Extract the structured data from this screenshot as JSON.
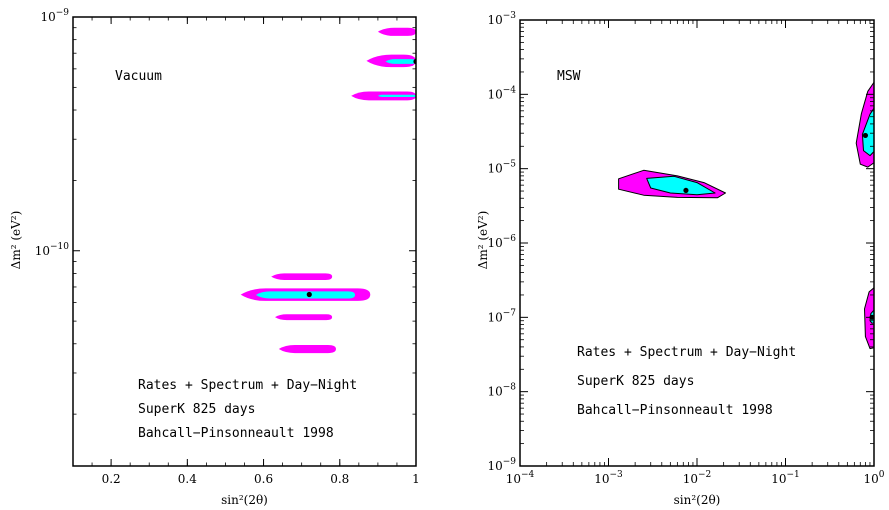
{
  "colors": {
    "outer_region": "#ff00ff",
    "inner_region": "#00ffff",
    "outline": "#000000",
    "best_fit": "#000000"
  },
  "chart_data": [
    {
      "type": "scatter",
      "panel": "left",
      "annotation": "Vacuum",
      "xlabel": "sin²(2θ)",
      "ylabel": "Δm²  (eV²)",
      "xscale": "linear",
      "yscale": "log",
      "xlim": [
        0.1,
        1.0
      ],
      "ylim": [
        1.2e-11,
        1e-09
      ],
      "xticks": [
        {
          "value": 0.2,
          "label": "0.2"
        },
        {
          "value": 0.4,
          "label": "0.4"
        },
        {
          "value": 0.6,
          "label": "0.6"
        },
        {
          "value": 0.8,
          "label": "0.8"
        },
        {
          "value": 1.0,
          "label": "1"
        }
      ],
      "yticks": [
        {
          "value": 1e-09,
          "base": "10",
          "exp": "−9"
        },
        {
          "value": 1e-10,
          "base": "10",
          "exp": "−10"
        }
      ],
      "legend_text": [
        "Rates + Spectrum + Day−Night",
        "SuperK 825 days",
        "Bahcall−Pinsonneault 1998"
      ],
      "best_fit": [
        {
          "x": 0.72,
          "y": 6.5e-11
        },
        {
          "x": 1.0,
          "y": 6.45e-10
        }
      ],
      "regions": [
        {
          "level": "outer",
          "x": [
            0.9,
            1.0
          ],
          "y": [
            8.3e-10,
            9e-10
          ]
        },
        {
          "level": "outer",
          "x": [
            0.87,
            1.0
          ],
          "y": [
            6.1e-10,
            6.9e-10
          ]
        },
        {
          "level": "inner",
          "x": [
            0.92,
            1.0
          ],
          "y": [
            6.3e-10,
            6.6e-10
          ]
        },
        {
          "level": "outer",
          "x": [
            0.83,
            1.0
          ],
          "y": [
            4.4e-10,
            4.8e-10
          ]
        },
        {
          "level": "inner",
          "x": [
            0.9,
            1.0
          ],
          "y": [
            4.55e-10,
            4.65e-10
          ]
        },
        {
          "level": "outer",
          "x": [
            0.62,
            0.78
          ],
          "y": [
            7.5e-11,
            8e-11
          ]
        },
        {
          "level": "outer",
          "x": [
            0.54,
            0.88
          ],
          "y": [
            6.1e-11,
            6.9e-11
          ]
        },
        {
          "level": "inner",
          "x": [
            0.58,
            0.84
          ],
          "y": [
            6.25e-11,
            6.7e-11
          ]
        },
        {
          "level": "outer",
          "x": [
            0.63,
            0.78
          ],
          "y": [
            5.05e-11,
            5.35e-11
          ]
        },
        {
          "level": "outer",
          "x": [
            0.64,
            0.79
          ],
          "y": [
            3.65e-11,
            3.95e-11
          ]
        }
      ]
    },
    {
      "type": "scatter",
      "panel": "right",
      "annotation": "MSW",
      "xlabel": "sin²(2θ)",
      "ylabel": "Δm²  (eV²)",
      "xscale": "log",
      "yscale": "log",
      "xlim": [
        0.0001,
        1
      ],
      "ylim": [
        1e-09,
        0.001
      ],
      "xticks": [
        {
          "value": 0.0001,
          "base": "10",
          "exp": "−4"
        },
        {
          "value": 0.001,
          "base": "10",
          "exp": "−3"
        },
        {
          "value": 0.01,
          "base": "10",
          "exp": "−2"
        },
        {
          "value": 0.1,
          "base": "10",
          "exp": "−1"
        },
        {
          "value": 1,
          "base": "10",
          "exp": "0"
        }
      ],
      "yticks": [
        {
          "value": 1e-09,
          "base": "10",
          "exp": "−9"
        },
        {
          "value": 1e-08,
          "base": "10",
          "exp": "−8"
        },
        {
          "value": 1e-07,
          "base": "10",
          "exp": "−7"
        },
        {
          "value": 1e-06,
          "base": "10",
          "exp": "−6"
        },
        {
          "value": 1e-05,
          "base": "10",
          "exp": "−5"
        },
        {
          "value": 0.0001,
          "base": "10",
          "exp": "−4"
        },
        {
          "value": 0.001,
          "base": "10",
          "exp": "−3"
        }
      ],
      "legend_text": [
        "Rates + Spectrum + Day−Night",
        "SuperK 825 days",
        "Bahcall−Pinsonneault 1998"
      ],
      "best_fit": [
        {
          "x": 0.0075,
          "y": 5.1e-06
        },
        {
          "x": 0.8,
          "y": 2.8e-05
        },
        {
          "x": 0.95,
          "y": 1e-07
        }
      ],
      "regions": [
        {
          "level": "outer",
          "shape": "polygon",
          "points": [
            [
              0.0013,
              7.3e-06
            ],
            [
              0.0025,
              9.5e-06
            ],
            [
              0.006,
              8e-06
            ],
            [
              0.012,
              6.5e-06
            ],
            [
              0.021,
              4.7e-06
            ],
            [
              0.017,
              4.05e-06
            ],
            [
              0.006,
              4.1e-06
            ],
            [
              0.0025,
              4.4e-06
            ],
            [
              0.0013,
              5.3e-06
            ]
          ]
        },
        {
          "level": "inner",
          "shape": "polygon",
          "points": [
            [
              0.0027,
              7.4e-06
            ],
            [
              0.0055,
              7.9e-06
            ],
            [
              0.01,
              6.5e-06
            ],
            [
              0.016,
              4.7e-06
            ],
            [
              0.01,
              4.45e-06
            ],
            [
              0.005,
              4.7e-06
            ],
            [
              0.003,
              5.5e-06
            ]
          ]
        },
        {
          "level": "outer",
          "shape": "polygon",
          "points": [
            [
              1.0,
              0.000145
            ],
            [
              0.85,
              0.00011
            ],
            [
              0.72,
              5.5e-05
            ],
            [
              0.63,
              2.2e-05
            ],
            [
              0.7,
              1.15e-05
            ],
            [
              0.85,
              1.05e-05
            ],
            [
              1.0,
              1.2e-05
            ]
          ]
        },
        {
          "level": "inner",
          "shape": "polygon",
          "points": [
            [
              1.0,
              6.5e-05
            ],
            [
              0.9,
              5.4e-05
            ],
            [
              0.74,
              2.9e-05
            ],
            [
              0.76,
              1.75e-05
            ],
            [
              0.9,
              1.5e-05
            ],
            [
              1.0,
              1.7e-05
            ]
          ]
        },
        {
          "level": "outer",
          "shape": "polygon",
          "points": [
            [
              1.0,
              2.5e-07
            ],
            [
              0.88,
              2.2e-07
            ],
            [
              0.78,
              1.3e-07
            ],
            [
              0.8,
              5.5e-08
            ],
            [
              0.9,
              3.8e-08
            ],
            [
              1.0,
              3.9e-08
            ]
          ]
        },
        {
          "level": "inner",
          "shape": "polygon",
          "points": [
            [
              1.0,
              1.25e-07
            ],
            [
              0.92,
              1.12e-07
            ],
            [
              0.9,
              9e-08
            ],
            [
              0.95,
              8.3e-08
            ],
            [
              1.0,
              8.5e-08
            ]
          ]
        }
      ]
    }
  ]
}
